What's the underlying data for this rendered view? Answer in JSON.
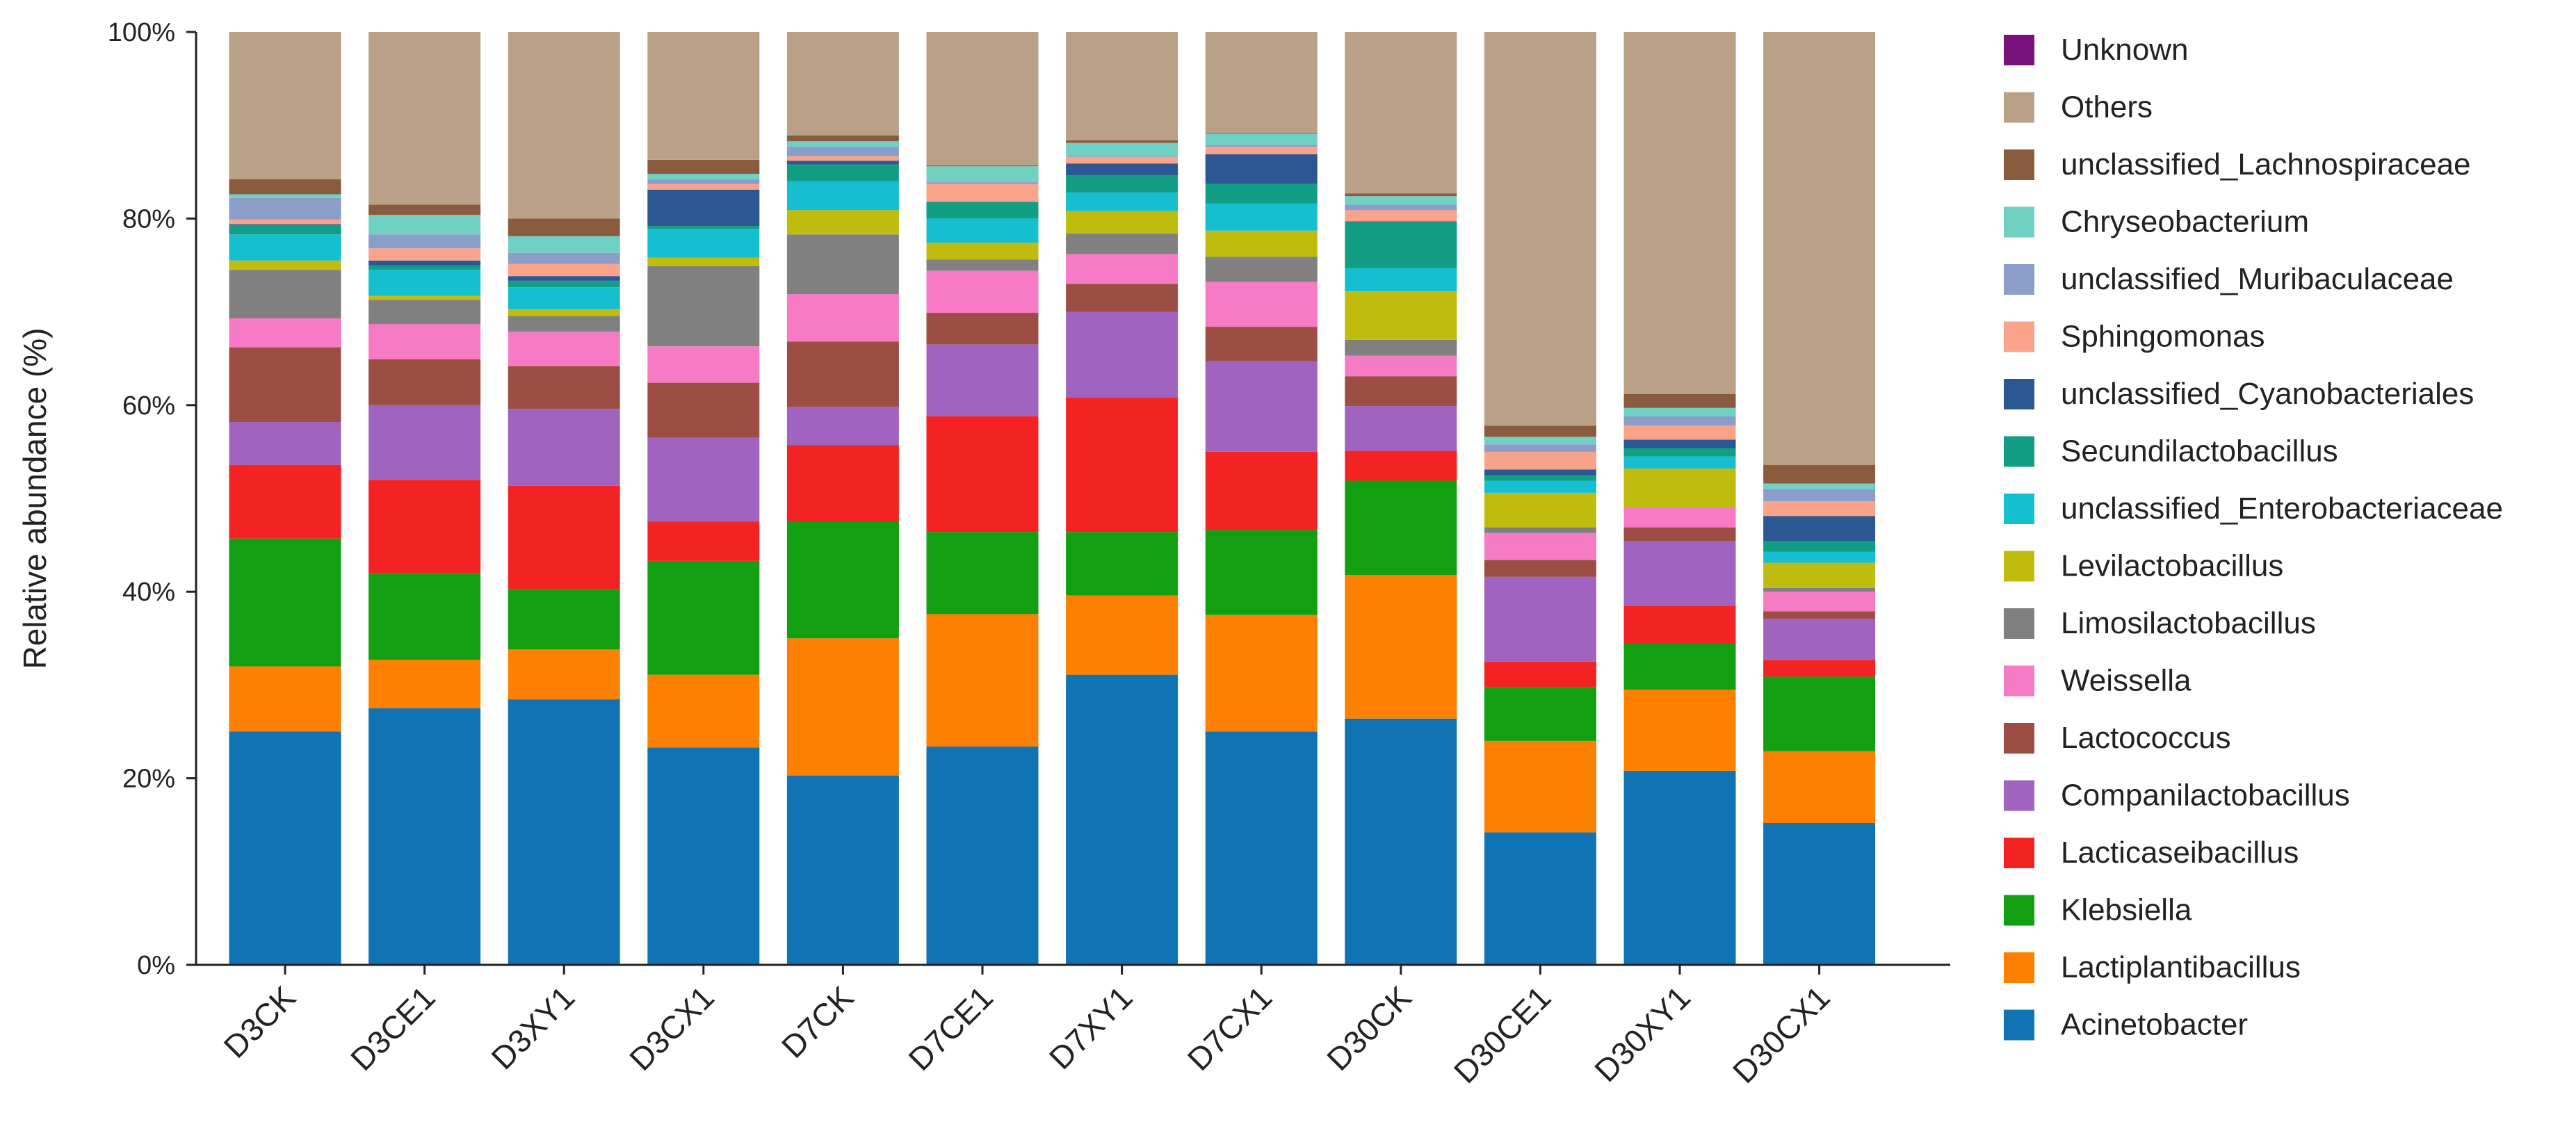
{
  "chart_data": {
    "type": "bar",
    "stacked": true,
    "title": "",
    "xlabel": "",
    "ylabel": "Relative abundance (%)",
    "ylim": [
      0,
      100
    ],
    "yticks": [
      "0%",
      "20%",
      "40%",
      "60%",
      "80%",
      "100%"
    ],
    "categories": [
      "D3CK",
      "D3CE1",
      "D3XY1",
      "D3CX1",
      "D7CK",
      "D7CE1",
      "D7XY1",
      "D7CX1",
      "D30CK",
      "D30CE1",
      "D30XY1",
      "D30CX1"
    ],
    "legend_position": "right",
    "series": [
      {
        "name": "Acinetobacter",
        "color": "#0f73b4",
        "values": [
          25.0,
          27.5,
          28.6,
          23.3,
          20.3,
          23.4,
          31.1,
          25.0,
          26.4,
          14.2,
          20.8,
          15.2
        ]
      },
      {
        "name": "Lactiplantibacillus",
        "color": "#fd8000",
        "values": [
          7.0,
          5.2,
          5.4,
          7.8,
          14.7,
          14.2,
          8.5,
          12.5,
          15.4,
          9.8,
          8.7,
          7.7
        ]
      },
      {
        "name": "Klebsiella",
        "color": "#12a012",
        "values": [
          13.7,
          9.3,
          6.5,
          12.2,
          12.5,
          8.8,
          6.8,
          9.1,
          10.1,
          5.8,
          5.0,
          8.0
        ]
      },
      {
        "name": "Lacticaseibacillus",
        "color": "#f42323",
        "values": [
          7.9,
          10.0,
          11.1,
          4.2,
          8.2,
          12.4,
          14.4,
          8.4,
          3.2,
          2.7,
          4.0,
          1.8
        ]
      },
      {
        "name": "Companilactobacillus",
        "color": "#a063bf",
        "values": [
          4.6,
          8.0,
          8.3,
          9.0,
          4.1,
          7.7,
          9.2,
          9.7,
          4.8,
          9.1,
          6.9,
          4.4
        ]
      },
      {
        "name": "Lactococcus",
        "color": "#9c4e44",
        "values": [
          8.0,
          4.9,
          4.6,
          5.9,
          7.0,
          3.4,
          3.0,
          3.7,
          3.2,
          1.8,
          1.5,
          0.8
        ]
      },
      {
        "name": "Weissella",
        "color": "#f77ac5",
        "values": [
          3.1,
          3.8,
          3.7,
          3.9,
          5.1,
          4.5,
          3.2,
          4.8,
          2.2,
          2.9,
          2.1,
          2.1
        ]
      },
      {
        "name": "Limosilactobacillus",
        "color": "#808080",
        "values": [
          5.2,
          2.6,
          1.7,
          8.6,
          6.4,
          1.2,
          2.2,
          2.7,
          1.7,
          0.6,
          0.0,
          0.4
        ]
      },
      {
        "name": "Levilactobacillus",
        "color": "#bfbc0e",
        "values": [
          1.0,
          0.4,
          0.7,
          0.9,
          2.6,
          1.8,
          2.4,
          2.8,
          5.2,
          3.7,
          4.2,
          2.7
        ]
      },
      {
        "name": "unclassified_Enterobacteriaceae",
        "color": "#16bfd0",
        "values": [
          2.8,
          2.8,
          2.4,
          3.1,
          3.1,
          2.6,
          2.0,
          2.9,
          2.5,
          1.3,
          1.3,
          1.2
        ]
      },
      {
        "name": "Secundilactobacillus",
        "color": "#119e84",
        "values": [
          1.0,
          0.5,
          0.7,
          0.3,
          1.8,
          1.8,
          1.8,
          2.1,
          4.9,
          0.6,
          0.9,
          1.1
        ]
      },
      {
        "name": "unclassified_Cyanobacteriales",
        "color": "#2b5792",
        "values": [
          0.1,
          0.5,
          0.5,
          3.9,
          0.4,
          0.0,
          1.3,
          3.2,
          0.1,
          0.6,
          0.9,
          2.7
        ]
      },
      {
        "name": "Sphingomonas",
        "color": "#f9a38a",
        "values": [
          0.5,
          1.3,
          1.3,
          0.6,
          0.5,
          1.9,
          0.7,
          0.8,
          1.2,
          1.9,
          1.5,
          1.6
        ]
      },
      {
        "name": "unclassified_Muribaculaceae",
        "color": "#8b9dc9",
        "values": [
          2.3,
          1.5,
          1.2,
          0.5,
          1.0,
          0.2,
          0.1,
          0.2,
          0.6,
          0.8,
          1.0,
          1.3
        ]
      },
      {
        "name": "Chryseobacterium",
        "color": "#70d1c2",
        "values": [
          0.4,
          2.1,
          1.8,
          0.6,
          0.6,
          1.7,
          1.4,
          1.2,
          0.9,
          0.8,
          0.9,
          0.6
        ]
      },
      {
        "name": "unclassified_Lachnospiraceae",
        "color": "#8a5c3f",
        "values": [
          1.6,
          1.1,
          1.9,
          1.5,
          0.6,
          0.1,
          0.3,
          0.1,
          0.3,
          1.2,
          1.5,
          2.0
        ]
      },
      {
        "name": "Others",
        "color": "#baa087",
        "values": [
          15.8,
          18.5,
          20.1,
          13.7,
          11.1,
          14.3,
          11.6,
          10.8,
          17.3,
          42.2,
          38.8,
          46.4
        ]
      },
      {
        "name": "Unknown",
        "color": "#79117d",
        "values": [
          0,
          0,
          0,
          0,
          0,
          0,
          0,
          0,
          0,
          0,
          0,
          0
        ]
      }
    ]
  }
}
